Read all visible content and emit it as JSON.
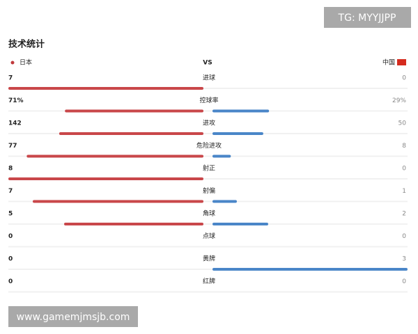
{
  "header": {
    "title": "技术统计",
    "home": "日本",
    "vs": "VS",
    "away": "中国"
  },
  "rows": [
    {
      "label": "进球",
      "home": 7,
      "away": 0
    },
    {
      "label": "控球率",
      "home": 71,
      "away": 29,
      "home_label": "71%",
      "away_label": "29%"
    },
    {
      "label": "进攻",
      "home": 142,
      "away": 50
    },
    {
      "label": "危险进攻",
      "home": 77,
      "away": 8
    },
    {
      "label": "射正",
      "home": 8,
      "away": 0
    },
    {
      "label": "射偏",
      "home": 7,
      "away": 1
    },
    {
      "label": "角球",
      "home": 5,
      "away": 2
    },
    {
      "label": "点球",
      "home": 0,
      "away": 0
    },
    {
      "label": "黄牌",
      "home": 0,
      "away": 3
    },
    {
      "label": "红牌",
      "home": 0,
      "away": 0
    }
  ],
  "watermarks": {
    "top": "TG: MYYJJPP",
    "bottom": "www.gamemjmsjb.com"
  }
}
